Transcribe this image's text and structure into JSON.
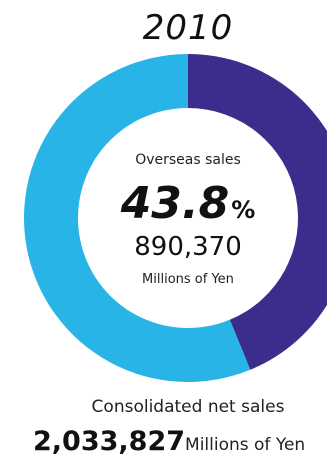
{
  "chart_data": {
    "type": "pie",
    "title": "2010",
    "categories": [
      "Overseas sales",
      ""
    ],
    "values": [
      43.8,
      56.2
    ],
    "colors": [
      "#3a2d8c",
      "#29b4e8"
    ],
    "center": {
      "label": "Overseas sales",
      "percent_value": "43.8",
      "percent_unit": "%",
      "amount": "890,370",
      "amount_unit": "Millions of Yen"
    },
    "footer": {
      "label": "Consolidated net sales",
      "value": "2,033,827",
      "unit": "Millions of Yen"
    }
  }
}
